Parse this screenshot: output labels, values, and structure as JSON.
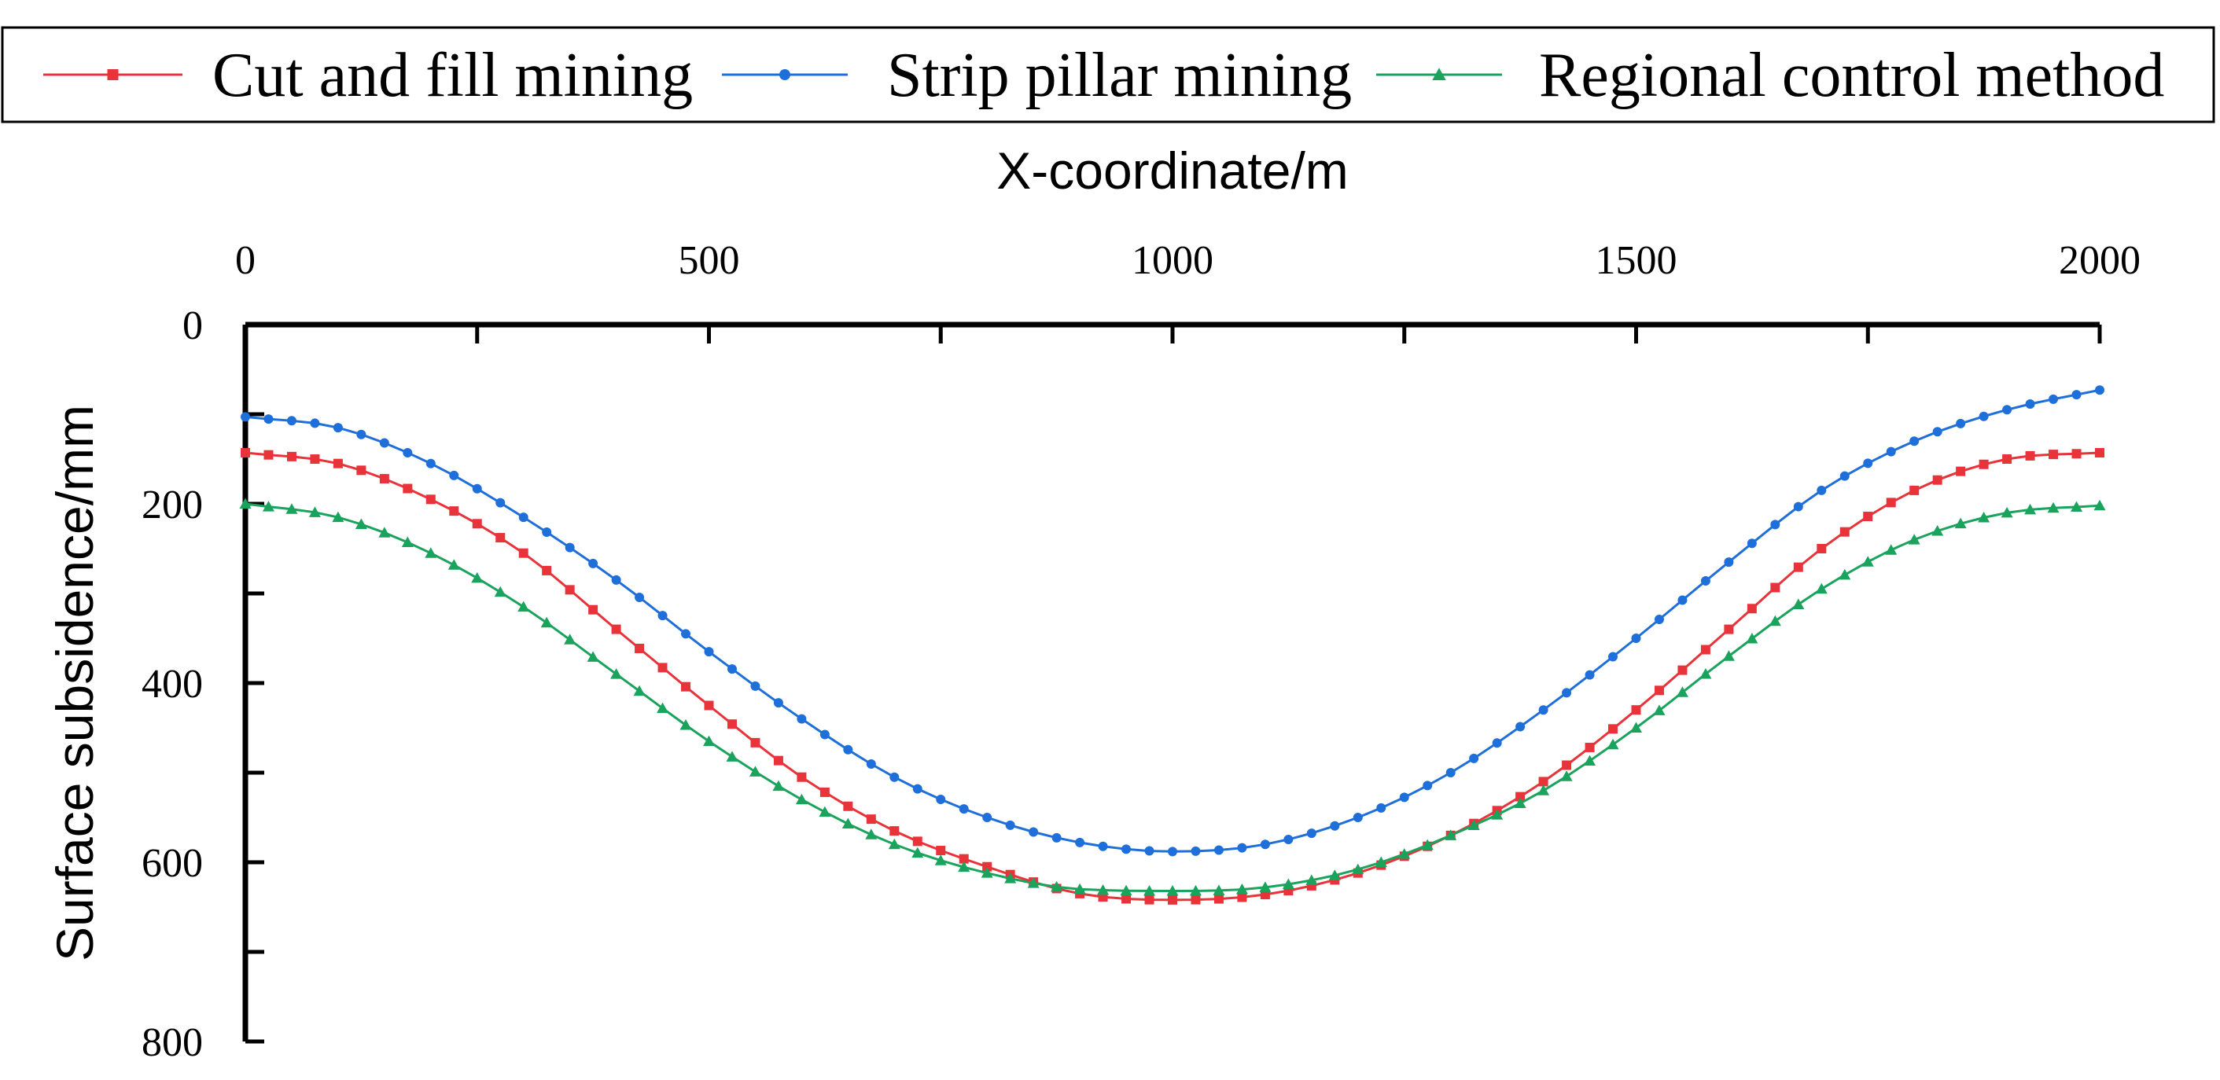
{
  "chart_data": {
    "type": "line",
    "xlabel": "X-coordinate/m",
    "ylabel": "Surface subsidence/mm",
    "xlim": [
      0,
      2000
    ],
    "ylim": [
      0,
      800
    ],
    "x_ticks": [
      "0",
      "500",
      "1000",
      "1500",
      "2000"
    ],
    "y_ticks": [
      "0",
      "200",
      "400",
      "600",
      "800"
    ],
    "x_axis_position": "top",
    "y_axis_inverted": true,
    "legend_position": "top",
    "series": [
      {
        "name": "Cut and fill mining",
        "color": "#e8333a",
        "marker": "square",
        "x": [
          0,
          100,
          200,
          300,
          400,
          500,
          600,
          700,
          800,
          900,
          1000,
          1100,
          1200,
          1300,
          1400,
          1500,
          1600,
          1700,
          1800,
          1900,
          2000
        ],
        "values": [
          143,
          155,
          195,
          255,
          340,
          425,
          505,
          565,
          605,
          635,
          642,
          636,
          612,
          570,
          510,
          430,
          340,
          250,
          185,
          150,
          143
        ]
      },
      {
        "name": "Strip pillar mining",
        "color": "#1e6fd9",
        "marker": "circle",
        "x": [
          0,
          100,
          200,
          300,
          400,
          500,
          600,
          700,
          800,
          900,
          1000,
          1100,
          1200,
          1300,
          1400,
          1500,
          1600,
          1700,
          1800,
          1900,
          2000
        ],
        "values": [
          103,
          115,
          155,
          215,
          285,
          365,
          440,
          505,
          550,
          578,
          588,
          580,
          550,
          500,
          430,
          350,
          265,
          185,
          130,
          95,
          73
        ]
      },
      {
        "name": "Regional control method",
        "color": "#1aa35c",
        "marker": "triangle",
        "x": [
          0,
          100,
          200,
          300,
          400,
          500,
          600,
          700,
          800,
          900,
          1000,
          1100,
          1200,
          1300,
          1400,
          1500,
          1600,
          1700,
          1800,
          1900,
          2000
        ],
        "values": [
          200,
          215,
          255,
          315,
          390,
          465,
          530,
          580,
          612,
          630,
          632,
          628,
          608,
          570,
          520,
          450,
          370,
          295,
          240,
          210,
          202
        ]
      }
    ]
  }
}
